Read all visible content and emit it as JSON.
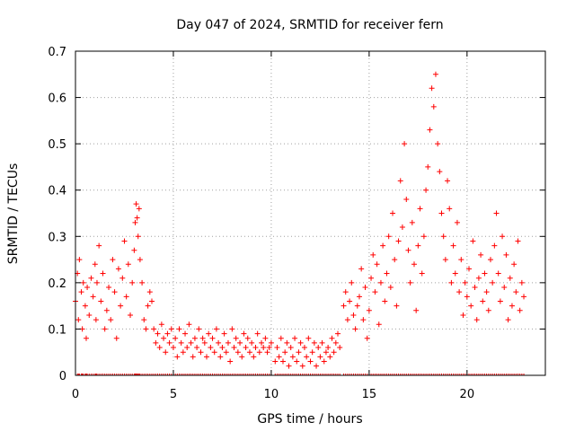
{
  "chart_data": {
    "type": "scatter",
    "title": "Day 047 of 2024, SRMTID for receiver fern",
    "xlabel": "GPS time / hours",
    "ylabel": "SRMTID / TECUs",
    "xlim": [
      0,
      24
    ],
    "ylim": [
      0,
      0.7
    ],
    "xticks": [
      0,
      5,
      10,
      15,
      20
    ],
    "xtick_labels": [
      "0",
      "5",
      "10",
      "15",
      "20"
    ],
    "yticks": [
      0,
      0.1,
      0.2,
      0.3,
      0.4,
      0.5,
      0.6,
      0.7
    ],
    "ytick_labels": [
      "0",
      "0.1",
      "0.2",
      "0.3",
      "0.4",
      "0.5",
      "0.6",
      "0.7"
    ],
    "grid": true,
    "marker": "+",
    "series": [
      {
        "name": "SRMTID",
        "color": "#ff0000",
        "points": [
          [
            0.0,
            0.16
          ],
          [
            0.1,
            0.22
          ],
          [
            0.15,
            0.12
          ],
          [
            0.2,
            0.25
          ],
          [
            0.3,
            0.18
          ],
          [
            0.35,
            0.1
          ],
          [
            0.4,
            0.2
          ],
          [
            0.5,
            0.15
          ],
          [
            0.55,
            0.08
          ],
          [
            0.6,
            0.19
          ],
          [
            0.7,
            0.13
          ],
          [
            0.8,
            0.21
          ],
          [
            0.9,
            0.17
          ],
          [
            1.0,
            0.24
          ],
          [
            1.05,
            0.12
          ],
          [
            1.1,
            0.2
          ],
          [
            1.2,
            0.28
          ],
          [
            1.3,
            0.16
          ],
          [
            1.4,
            0.22
          ],
          [
            1.5,
            0.1
          ],
          [
            1.6,
            0.14
          ],
          [
            1.7,
            0.19
          ],
          [
            1.8,
            0.12
          ],
          [
            1.9,
            0.25
          ],
          [
            2.0,
            0.18
          ],
          [
            2.1,
            0.08
          ],
          [
            2.2,
            0.23
          ],
          [
            2.3,
            0.15
          ],
          [
            2.4,
            0.21
          ],
          [
            2.5,
            0.29
          ],
          [
            2.6,
            0.17
          ],
          [
            2.7,
            0.24
          ],
          [
            2.8,
            0.13
          ],
          [
            2.9,
            0.2
          ],
          [
            3.0,
            0.27
          ],
          [
            3.05,
            0.33
          ],
          [
            3.1,
            0.37
          ],
          [
            3.15,
            0.34
          ],
          [
            3.2,
            0.3
          ],
          [
            3.25,
            0.36
          ],
          [
            3.3,
            0.25
          ],
          [
            3.4,
            0.2
          ],
          [
            3.5,
            0.12
          ],
          [
            3.6,
            0.1
          ],
          [
            3.7,
            0.15
          ],
          [
            3.8,
            0.18
          ],
          [
            3.9,
            0.16
          ],
          [
            4.0,
            0.1
          ],
          [
            4.1,
            0.07
          ],
          [
            4.2,
            0.09
          ],
          [
            4.3,
            0.06
          ],
          [
            4.4,
            0.11
          ],
          [
            4.5,
            0.08
          ],
          [
            4.6,
            0.05
          ],
          [
            4.7,
            0.09
          ],
          [
            4.8,
            0.07
          ],
          [
            4.9,
            0.1
          ],
          [
            5.0,
            0.06
          ],
          [
            5.1,
            0.08
          ],
          [
            5.2,
            0.04
          ],
          [
            5.3,
            0.1
          ],
          [
            5.4,
            0.07
          ],
          [
            5.5,
            0.05
          ],
          [
            5.6,
            0.09
          ],
          [
            5.7,
            0.06
          ],
          [
            5.8,
            0.11
          ],
          [
            5.9,
            0.07
          ],
          [
            6.0,
            0.04
          ],
          [
            6.1,
            0.08
          ],
          [
            6.2,
            0.06
          ],
          [
            6.3,
            0.1
          ],
          [
            6.4,
            0.05
          ],
          [
            6.5,
            0.08
          ],
          [
            6.6,
            0.07
          ],
          [
            6.7,
            0.04
          ],
          [
            6.8,
            0.09
          ],
          [
            6.9,
            0.06
          ],
          [
            7.0,
            0.08
          ],
          [
            7.1,
            0.05
          ],
          [
            7.2,
            0.1
          ],
          [
            7.3,
            0.07
          ],
          [
            7.4,
            0.04
          ],
          [
            7.5,
            0.06
          ],
          [
            7.6,
            0.09
          ],
          [
            7.7,
            0.05
          ],
          [
            7.8,
            0.07
          ],
          [
            7.9,
            0.03
          ],
          [
            8.0,
            0.1
          ],
          [
            8.1,
            0.06
          ],
          [
            8.2,
            0.08
          ],
          [
            8.3,
            0.05
          ],
          [
            8.4,
            0.07
          ],
          [
            8.5,
            0.04
          ],
          [
            8.6,
            0.09
          ],
          [
            8.7,
            0.06
          ],
          [
            8.8,
            0.08
          ],
          [
            8.9,
            0.05
          ],
          [
            9.0,
            0.07
          ],
          [
            9.1,
            0.04
          ],
          [
            9.2,
            0.06
          ],
          [
            9.3,
            0.09
          ],
          [
            9.4,
            0.05
          ],
          [
            9.5,
            0.07
          ],
          [
            9.6,
            0.06
          ],
          [
            9.7,
            0.08
          ],
          [
            9.8,
            0.05
          ],
          [
            9.9,
            0.06
          ],
          [
            10.0,
            0.07
          ],
          [
            10.2,
            0.03
          ],
          [
            10.3,
            0.06
          ],
          [
            10.4,
            0.04
          ],
          [
            10.5,
            0.08
          ],
          [
            10.6,
            0.03
          ],
          [
            10.7,
            0.05
          ],
          [
            10.8,
            0.07
          ],
          [
            10.9,
            0.02
          ],
          [
            11.0,
            0.06
          ],
          [
            11.1,
            0.04
          ],
          [
            11.2,
            0.08
          ],
          [
            11.3,
            0.03
          ],
          [
            11.4,
            0.05
          ],
          [
            11.5,
            0.07
          ],
          [
            11.6,
            0.02
          ],
          [
            11.7,
            0.06
          ],
          [
            11.8,
            0.04
          ],
          [
            11.9,
            0.08
          ],
          [
            12.0,
            0.03
          ],
          [
            12.1,
            0.05
          ],
          [
            12.2,
            0.07
          ],
          [
            12.3,
            0.02
          ],
          [
            12.4,
            0.06
          ],
          [
            12.5,
            0.04
          ],
          [
            12.6,
            0.07
          ],
          [
            12.7,
            0.03
          ],
          [
            12.8,
            0.05
          ],
          [
            12.9,
            0.06
          ],
          [
            13.0,
            0.04
          ],
          [
            13.1,
            0.08
          ],
          [
            13.2,
            0.05
          ],
          [
            13.3,
            0.07
          ],
          [
            13.4,
            0.09
          ],
          [
            13.5,
            0.06
          ],
          [
            13.7,
            0.15
          ],
          [
            13.8,
            0.18
          ],
          [
            13.9,
            0.12
          ],
          [
            14.0,
            0.16
          ],
          [
            14.1,
            0.2
          ],
          [
            14.2,
            0.13
          ],
          [
            14.3,
            0.1
          ],
          [
            14.4,
            0.15
          ],
          [
            14.5,
            0.17
          ],
          [
            14.6,
            0.23
          ],
          [
            14.7,
            0.12
          ],
          [
            14.8,
            0.19
          ],
          [
            14.9,
            0.08
          ],
          [
            15.0,
            0.14
          ],
          [
            15.1,
            0.21
          ],
          [
            15.2,
            0.26
          ],
          [
            15.3,
            0.18
          ],
          [
            15.4,
            0.24
          ],
          [
            15.5,
            0.11
          ],
          [
            15.6,
            0.2
          ],
          [
            15.7,
            0.28
          ],
          [
            15.8,
            0.16
          ],
          [
            15.9,
            0.22
          ],
          [
            16.0,
            0.3
          ],
          [
            16.1,
            0.19
          ],
          [
            16.2,
            0.35
          ],
          [
            16.3,
            0.25
          ],
          [
            16.4,
            0.15
          ],
          [
            16.5,
            0.29
          ],
          [
            16.6,
            0.42
          ],
          [
            16.7,
            0.32
          ],
          [
            16.8,
            0.5
          ],
          [
            16.9,
            0.38
          ],
          [
            17.0,
            0.27
          ],
          [
            17.1,
            0.2
          ],
          [
            17.2,
            0.33
          ],
          [
            17.3,
            0.24
          ],
          [
            17.4,
            0.14
          ],
          [
            17.5,
            0.28
          ],
          [
            17.6,
            0.36
          ],
          [
            17.7,
            0.22
          ],
          [
            17.8,
            0.3
          ],
          [
            17.9,
            0.4
          ],
          [
            18.0,
            0.45
          ],
          [
            18.1,
            0.53
          ],
          [
            18.2,
            0.62
          ],
          [
            18.3,
            0.58
          ],
          [
            18.4,
            0.65
          ],
          [
            18.5,
            0.5
          ],
          [
            18.6,
            0.44
          ],
          [
            18.7,
            0.35
          ],
          [
            18.8,
            0.3
          ],
          [
            18.9,
            0.25
          ],
          [
            19.0,
            0.42
          ],
          [
            19.1,
            0.36
          ],
          [
            19.2,
            0.2
          ],
          [
            19.3,
            0.28
          ],
          [
            19.4,
            0.22
          ],
          [
            19.5,
            0.33
          ],
          [
            19.6,
            0.18
          ],
          [
            19.7,
            0.25
          ],
          [
            19.8,
            0.13
          ],
          [
            19.9,
            0.2
          ],
          [
            20.0,
            0.17
          ],
          [
            20.1,
            0.23
          ],
          [
            20.2,
            0.15
          ],
          [
            20.3,
            0.29
          ],
          [
            20.4,
            0.19
          ],
          [
            20.5,
            0.12
          ],
          [
            20.6,
            0.21
          ],
          [
            20.7,
            0.26
          ],
          [
            20.8,
            0.16
          ],
          [
            20.9,
            0.22
          ],
          [
            21.0,
            0.18
          ],
          [
            21.1,
            0.14
          ],
          [
            21.2,
            0.25
          ],
          [
            21.3,
            0.2
          ],
          [
            21.4,
            0.28
          ],
          [
            21.5,
            0.35
          ],
          [
            21.6,
            0.22
          ],
          [
            21.7,
            0.16
          ],
          [
            21.8,
            0.3
          ],
          [
            21.9,
            0.19
          ],
          [
            22.0,
            0.26
          ],
          [
            22.1,
            0.12
          ],
          [
            22.2,
            0.21
          ],
          [
            22.3,
            0.15
          ],
          [
            22.4,
            0.24
          ],
          [
            22.5,
            0.18
          ],
          [
            22.6,
            0.29
          ],
          [
            22.7,
            0.14
          ],
          [
            22.8,
            0.2
          ],
          [
            22.9,
            0.17
          ]
        ]
      }
    ]
  }
}
